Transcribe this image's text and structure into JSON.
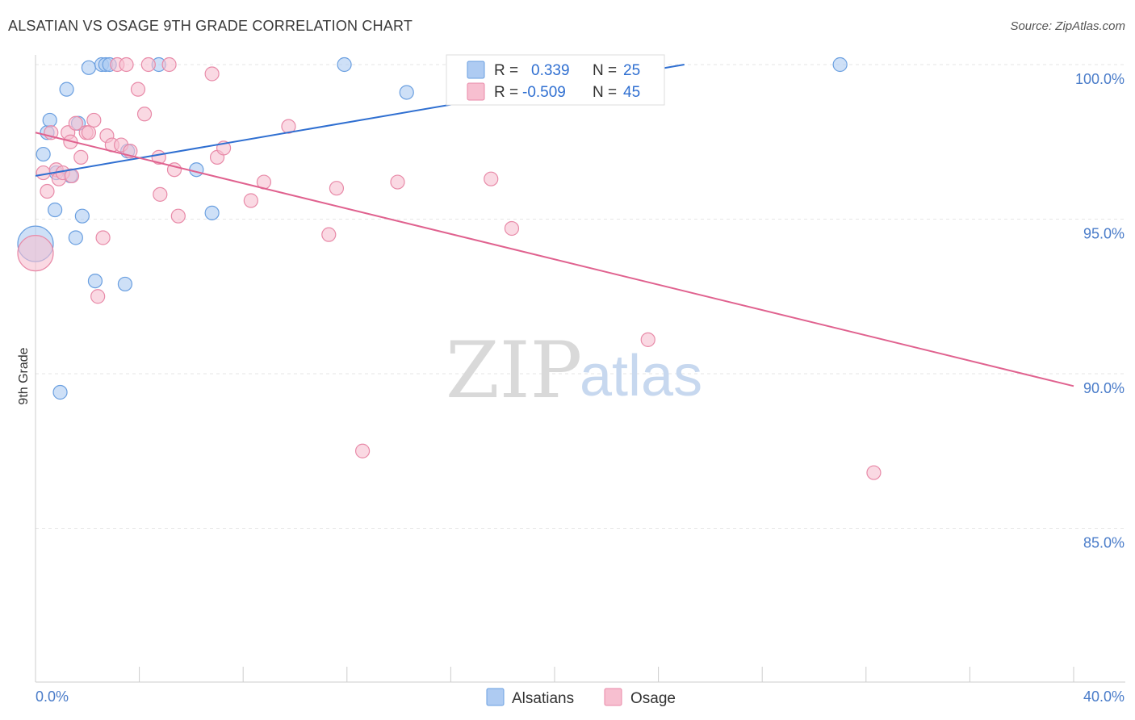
{
  "title": "ALSATIAN VS OSAGE 9TH GRADE CORRELATION CHART",
  "source": "Source: ZipAtlas.com",
  "watermark": {
    "zip": "ZIP",
    "atlas": "atlas"
  },
  "colors": {
    "blue_fill": "#aecbf2",
    "blue_stroke": "#6a9fe0",
    "blue_line": "#2f6fd1",
    "pink_fill": "#f7bfd0",
    "pink_stroke": "#e88aa8",
    "pink_line": "#e0628f",
    "grid": "#e6e6e6",
    "axis_text": "#4a7cc9"
  },
  "legend": {
    "rows": [
      {
        "r_label": "R =",
        "r_value": "0.339",
        "n_label": "N =",
        "n_value": "25"
      },
      {
        "r_label": "R =",
        "r_value": "-0.509",
        "n_label": "N =",
        "n_value": "45"
      }
    ]
  },
  "chart_data": {
    "type": "scatter",
    "title": "ALSATIAN VS OSAGE 9TH GRADE CORRELATION CHART",
    "xlabel": "",
    "ylabel": "9th Grade",
    "xlim": [
      0,
      40
    ],
    "ylim": [
      80.5,
      101.8
    ],
    "x_tick_labels": [
      "0.0%",
      "40.0%"
    ],
    "y_ticks": [
      85,
      90,
      95,
      100
    ],
    "y_tick_labels": [
      "85.0%",
      "90.0%",
      "95.0%",
      "100.0%"
    ],
    "grid": true,
    "series": [
      {
        "name": "Alsatians",
        "r": 0.339,
        "n": 25,
        "trend": {
          "x": [
            0,
            25.0
          ],
          "y": [
            96.4,
            100.0
          ],
          "x_dashed_end": 25.0
        },
        "points": [
          {
            "x": 0.0,
            "y": 94.2,
            "size": "large"
          },
          {
            "x": 0.3,
            "y": 97.1
          },
          {
            "x": 0.45,
            "y": 97.8
          },
          {
            "x": 0.55,
            "y": 98.2
          },
          {
            "x": 0.75,
            "y": 95.3
          },
          {
            "x": 0.8,
            "y": 96.5
          },
          {
            "x": 0.95,
            "y": 89.4
          },
          {
            "x": 1.2,
            "y": 99.2
          },
          {
            "x": 1.35,
            "y": 96.4
          },
          {
            "x": 1.55,
            "y": 94.4
          },
          {
            "x": 1.65,
            "y": 98.1
          },
          {
            "x": 1.8,
            "y": 95.1
          },
          {
            "x": 2.05,
            "y": 99.9
          },
          {
            "x": 2.3,
            "y": 93.0
          },
          {
            "x": 2.55,
            "y": 100.0
          },
          {
            "x": 2.7,
            "y": 100.0
          },
          {
            "x": 2.85,
            "y": 100.0
          },
          {
            "x": 3.45,
            "y": 92.9
          },
          {
            "x": 3.55,
            "y": 97.2
          },
          {
            "x": 4.75,
            "y": 100.0
          },
          {
            "x": 6.2,
            "y": 96.6
          },
          {
            "x": 6.8,
            "y": 95.2
          },
          {
            "x": 11.9,
            "y": 100.0
          },
          {
            "x": 14.3,
            "y": 99.1
          },
          {
            "x": 31.0,
            "y": 100.0
          }
        ]
      },
      {
        "name": "Osage",
        "r": -0.509,
        "n": 45,
        "trend": {
          "x": [
            0,
            40
          ],
          "y": [
            97.8,
            89.6
          ]
        },
        "points": [
          {
            "x": 0.0,
            "y": 93.9,
            "size": "large"
          },
          {
            "x": 0.3,
            "y": 96.5
          },
          {
            "x": 0.45,
            "y": 95.9
          },
          {
            "x": 0.6,
            "y": 97.8
          },
          {
            "x": 0.8,
            "y": 96.6
          },
          {
            "x": 0.9,
            "y": 96.3
          },
          {
            "x": 1.05,
            "y": 96.5
          },
          {
            "x": 1.25,
            "y": 97.8
          },
          {
            "x": 1.35,
            "y": 97.5
          },
          {
            "x": 1.55,
            "y": 98.1
          },
          {
            "x": 1.75,
            "y": 97.0
          },
          {
            "x": 1.95,
            "y": 97.8
          },
          {
            "x": 2.05,
            "y": 97.8
          },
          {
            "x": 2.25,
            "y": 98.2
          },
          {
            "x": 2.4,
            "y": 92.5
          },
          {
            "x": 2.6,
            "y": 94.4
          },
          {
            "x": 2.75,
            "y": 97.7
          },
          {
            "x": 2.95,
            "y": 97.4
          },
          {
            "x": 3.15,
            "y": 100.0
          },
          {
            "x": 3.3,
            "y": 97.4
          },
          {
            "x": 3.5,
            "y": 100.0
          },
          {
            "x": 3.65,
            "y": 97.2
          },
          {
            "x": 3.95,
            "y": 99.2
          },
          {
            "x": 4.2,
            "y": 98.4
          },
          {
            "x": 4.35,
            "y": 100.0
          },
          {
            "x": 4.75,
            "y": 97.0
          },
          {
            "x": 4.8,
            "y": 95.8
          },
          {
            "x": 5.15,
            "y": 100.0
          },
          {
            "x": 5.35,
            "y": 96.6
          },
          {
            "x": 5.5,
            "y": 95.1
          },
          {
            "x": 6.8,
            "y": 99.7
          },
          {
            "x": 7.0,
            "y": 97.0
          },
          {
            "x": 7.25,
            "y": 97.3
          },
          {
            "x": 8.3,
            "y": 95.6
          },
          {
            "x": 8.8,
            "y": 96.2
          },
          {
            "x": 9.75,
            "y": 98.0
          },
          {
            "x": 11.3,
            "y": 94.5
          },
          {
            "x": 11.6,
            "y": 96.0
          },
          {
            "x": 12.6,
            "y": 87.5
          },
          {
            "x": 13.95,
            "y": 96.2
          },
          {
            "x": 17.55,
            "y": 96.3
          },
          {
            "x": 18.35,
            "y": 94.7
          },
          {
            "x": 23.6,
            "y": 91.1
          },
          {
            "x": 32.3,
            "y": 86.8
          },
          {
            "x": 1.4,
            "y": 96.4
          }
        ]
      }
    ]
  }
}
